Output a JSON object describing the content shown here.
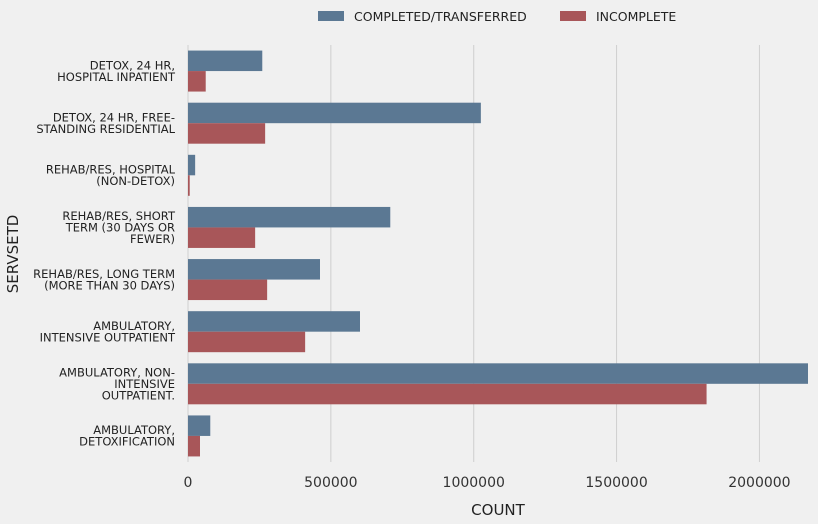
{
  "chart_data": {
    "type": "bar",
    "orientation": "horizontal",
    "title": "",
    "xlabel": "COUNT",
    "ylabel": "SERVSETD",
    "xlim": [
      0,
      2170000
    ],
    "xticks": [
      0,
      500000,
      1000000,
      1500000,
      2000000
    ],
    "xtick_labels": [
      "0",
      "500000",
      "1000000",
      "1500000",
      "2000000"
    ],
    "grid": "vertical",
    "legend_position": "top-center",
    "categories": [
      [
        "DETOX, 24 HR,",
        "HOSPITAL INPATIENT"
      ],
      [
        "DETOX, 24 HR, FREE-",
        "STANDING RESIDENTIAL"
      ],
      [
        "REHAB/RES, HOSPITAL",
        "(NON-DETOX)"
      ],
      [
        "REHAB/RES, SHORT",
        "TERM (30 DAYS OR",
        "FEWER)"
      ],
      [
        "REHAB/RES, LONG TERM",
        "(MORE THAN 30 DAYS)"
      ],
      [
        "AMBULATORY,",
        "INTENSIVE OUTPATIENT"
      ],
      [
        "AMBULATORY, NON-",
        "INTENSIVE",
        "OUTPATIENT."
      ],
      [
        "AMBULATORY,",
        "DETOXIFICATION"
      ]
    ],
    "series": [
      {
        "name": "COMPLETED/TRANSFERRED",
        "color": "#5b7893",
        "values": [
          260000,
          1025000,
          25000,
          708000,
          462000,
          602000,
          2170000,
          78000
        ]
      },
      {
        "name": "INCOMPLETE",
        "color": "#a85659",
        "values": [
          62000,
          270000,
          6000,
          235000,
          277000,
          410000,
          1815000,
          42000
        ]
      }
    ]
  }
}
